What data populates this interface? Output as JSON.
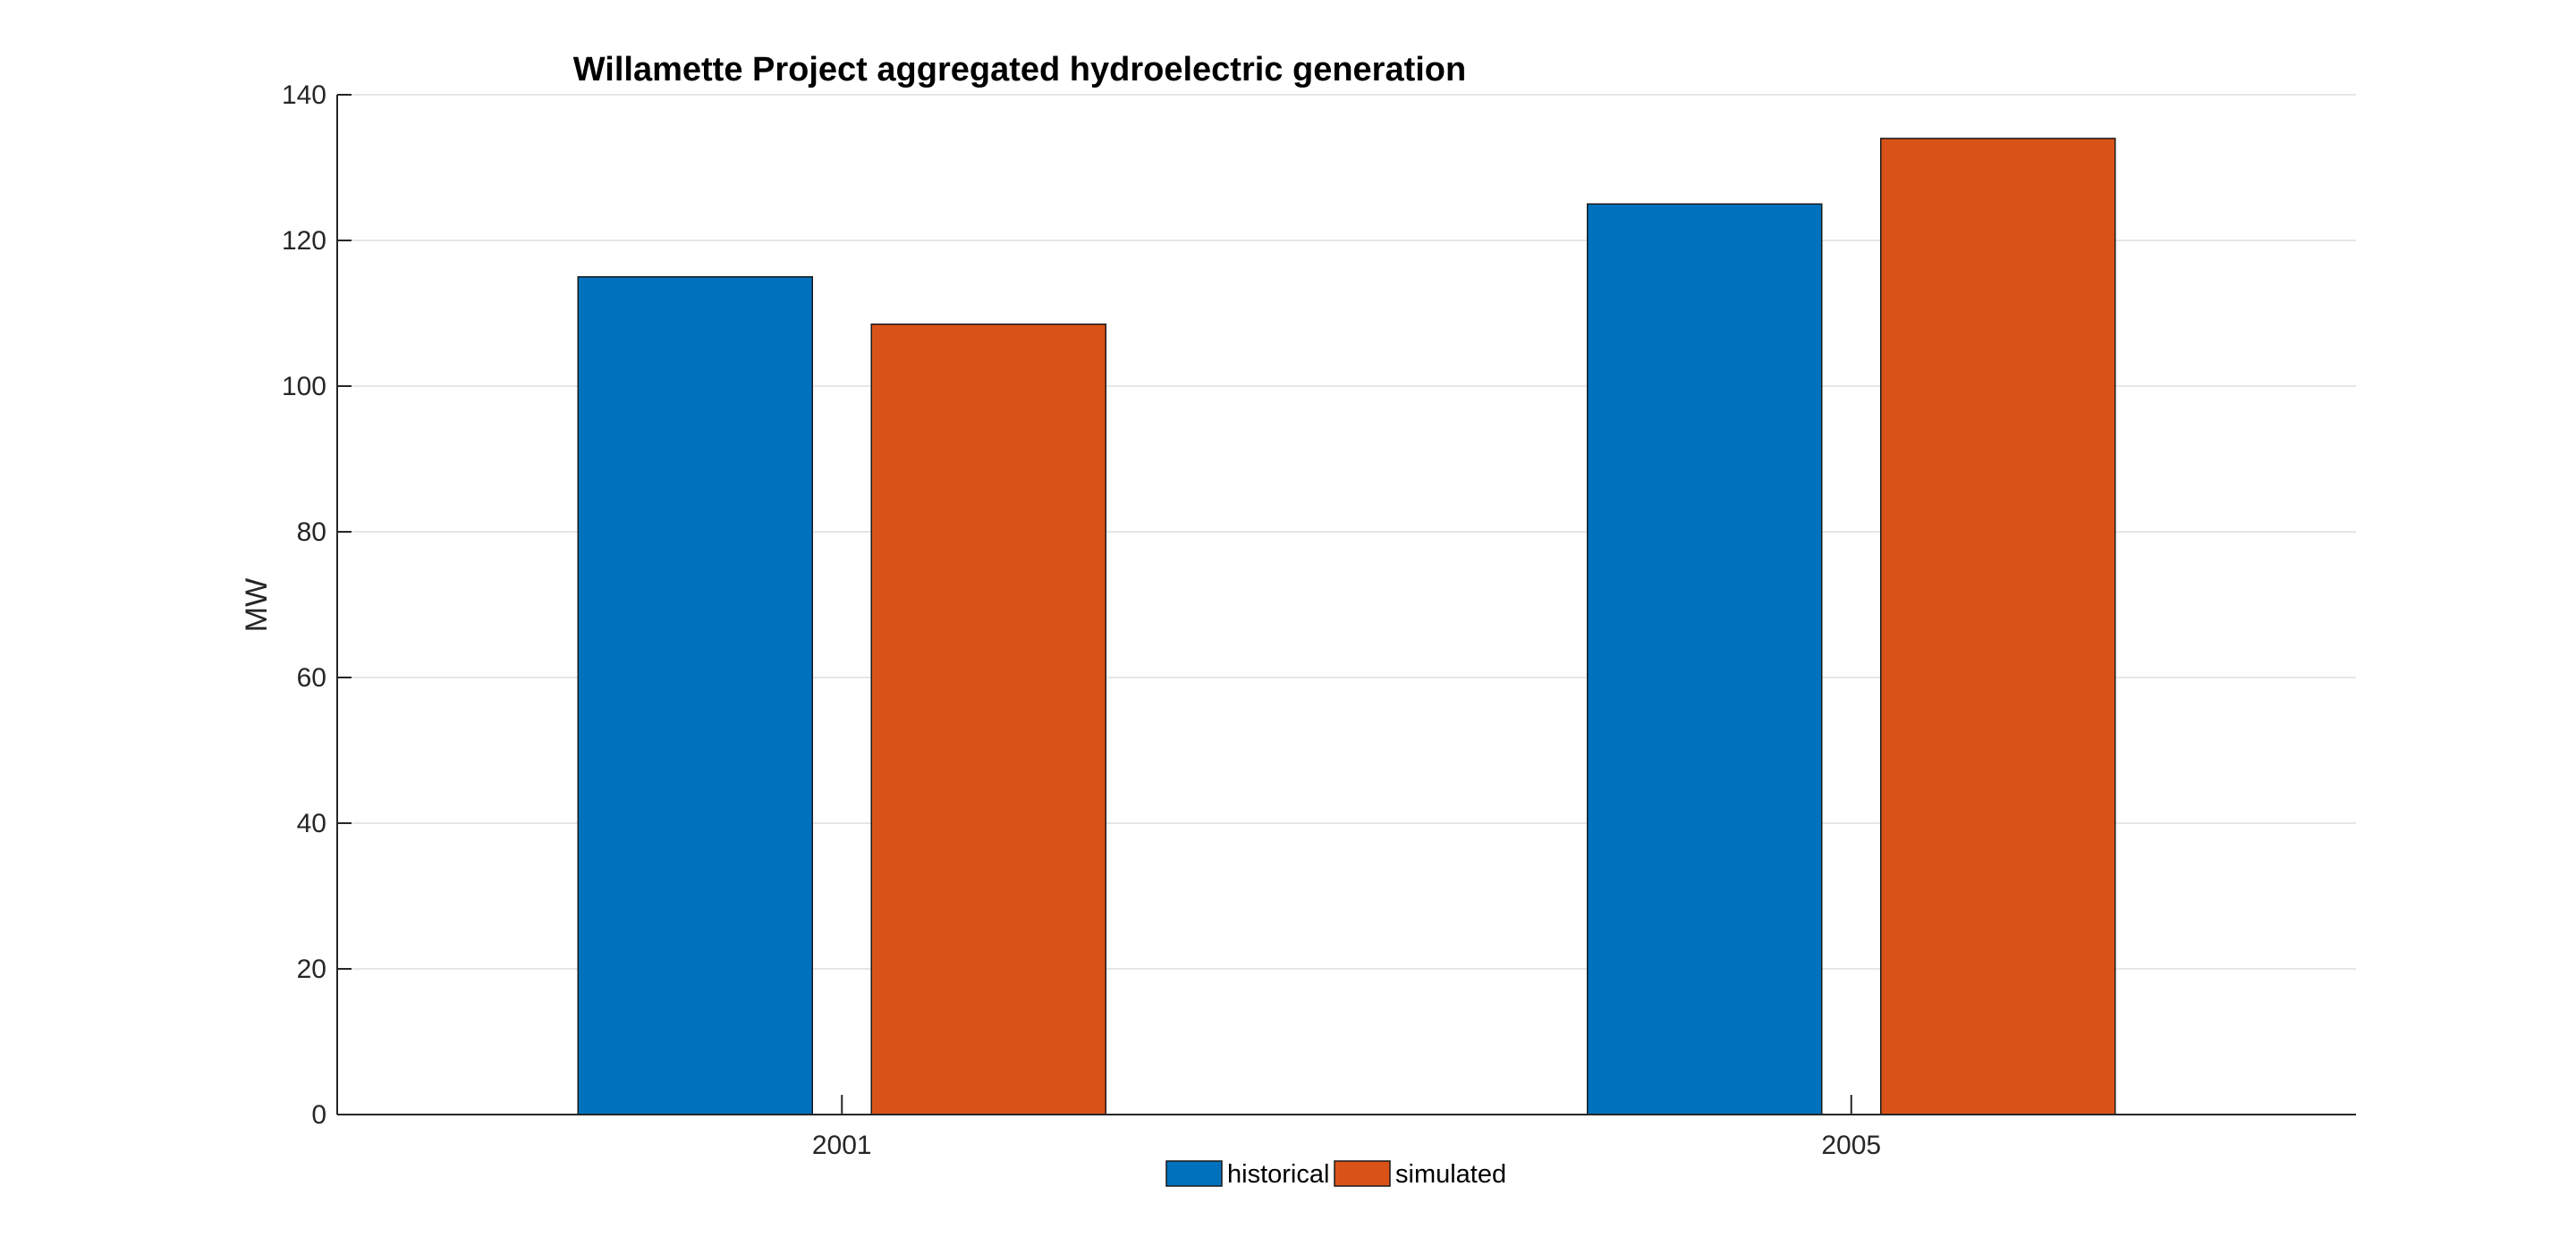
{
  "chart_data": {
    "type": "bar",
    "title": "Willamette Project aggregated hydroelectric generation",
    "xlabel": "",
    "ylabel": "MW",
    "categories": [
      "2001",
      "2005"
    ],
    "series": [
      {
        "name": "historical",
        "color": "#0072BD",
        "values": [
          115,
          125
        ]
      },
      {
        "name": "simulated",
        "color": "#D95319",
        "values": [
          108.5,
          134
        ]
      }
    ],
    "ylim": [
      0,
      140
    ],
    "yticks": [
      0,
      20,
      40,
      60,
      80,
      100,
      120,
      140
    ],
    "grid": true,
    "legend_position": "bottom"
  }
}
